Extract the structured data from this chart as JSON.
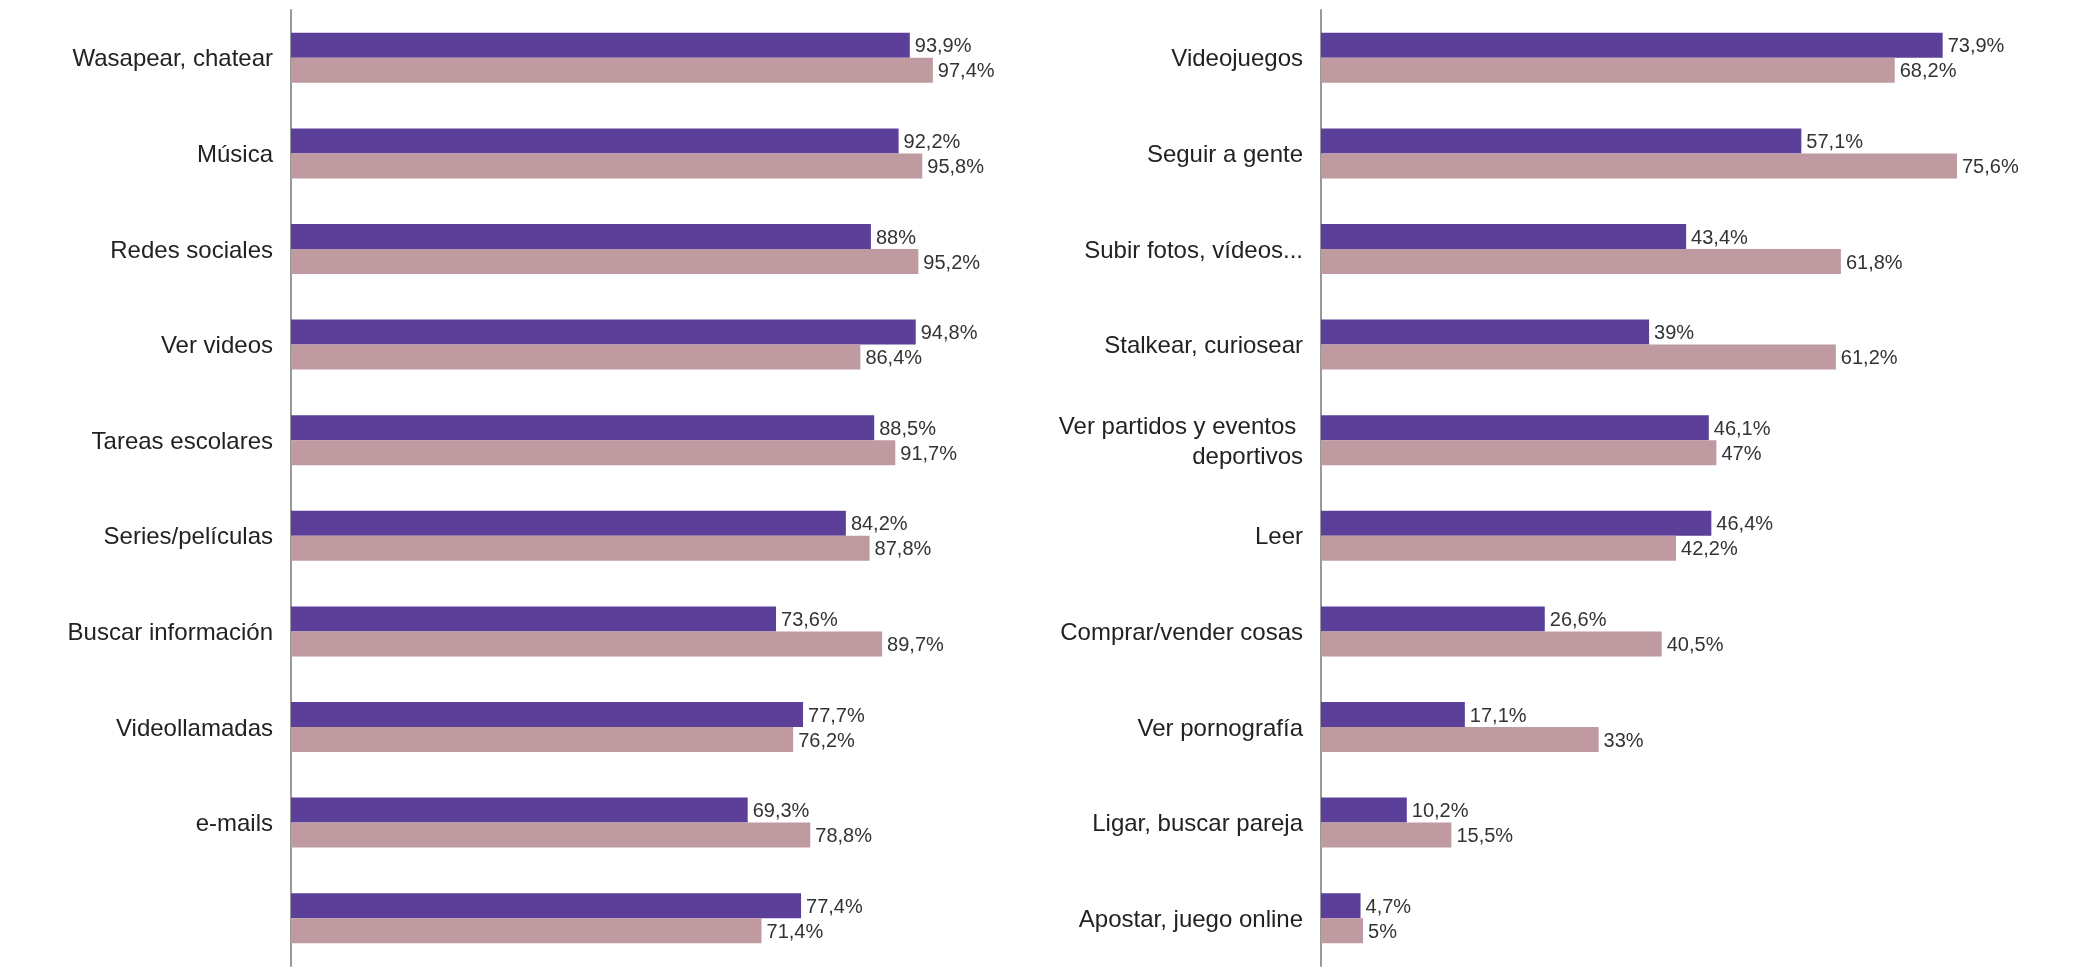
{
  "chart_data": [
    {
      "type": "bar",
      "orientation": "horizontal",
      "categories": [
        "Wasapear, chatear",
        "Música",
        "Redes sociales",
        "Ver videos",
        "Tareas escolares",
        "Series/películas",
        "Buscar información",
        "Videollamadas",
        "e-mails",
        null
      ],
      "series": [
        {
          "color": "#5b3f99",
          "values": [
            93.9,
            92.2,
            88,
            94.8,
            88.5,
            84.2,
            73.6,
            77.7,
            69.3,
            77.4
          ],
          "value_labels": [
            "93,9%",
            "92,2%",
            "88%",
            "94,8%",
            "88,5%",
            "84,2%",
            "73,6%",
            "77,7%",
            "69,3%",
            "77,4%"
          ]
        },
        {
          "color": "#bf9aa0",
          "values": [
            97.4,
            95.8,
            95.2,
            86.4,
            91.7,
            87.8,
            89.7,
            76.2,
            78.8,
            71.4
          ],
          "value_labels": [
            "97,4%",
            "95,8%",
            "95,2%",
            "86,4%",
            "91,7%",
            "87,8%",
            "89,7%",
            "76,2%",
            "78,8%",
            "71,4%"
          ]
        }
      ],
      "tick_labels": "y",
      "grid": false
    },
    {
      "type": "bar",
      "orientation": "horizontal",
      "categories": [
        "Videojuegos",
        "Seguir a gente",
        "Subir fotos, vídeos...",
        "Stalkear, curiosear",
        "Ver partidos y eventos deportivos",
        "Leer",
        "Comprar/vender cosas",
        "Ver pornografía",
        "Ligar, buscar pareja",
        "Apostar, juego online"
      ],
      "series": [
        {
          "color": "#5b3f99",
          "values": [
            73.9,
            57.1,
            43.4,
            39,
            46.1,
            46.4,
            26.6,
            17.1,
            10.2,
            4.7
          ],
          "value_labels": [
            "73,9%",
            "57,1%",
            "43,4%",
            "39%",
            "46,1%",
            "46,4%",
            "26,6%",
            "17,1%",
            "10,2%",
            "4,7%"
          ]
        },
        {
          "color": "#bf9aa0",
          "values": [
            68.2,
            75.6,
            61.8,
            61.2,
            47,
            42.2,
            40.5,
            33,
            15.5,
            5
          ],
          "value_labels": [
            "68,2%",
            "75,6%",
            "61,8%",
            "61,2%",
            "47%",
            "42,2%",
            "40,5%",
            "33%",
            "15,5%",
            "5%"
          ]
        }
      ],
      "tick_labels": "y",
      "grid": false
    }
  ]
}
